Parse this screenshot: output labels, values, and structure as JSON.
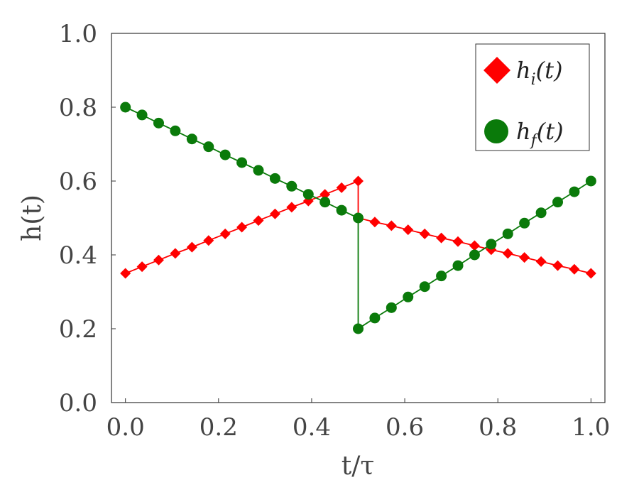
{
  "chart_data": {
    "type": "line",
    "xlabel": "t/τ",
    "ylabel": "h(t)",
    "xlim": [
      -0.03,
      1.03
    ],
    "ylim": [
      0.0,
      1.0
    ],
    "xticks": [
      "0.0",
      "0.2",
      "0.4",
      "0.6",
      "0.8",
      "1.0"
    ],
    "yticks": [
      "0.0",
      "0.2",
      "0.4",
      "0.6",
      "0.8",
      "1.0"
    ],
    "grid": false,
    "legend_position": "top-right",
    "series": [
      {
        "name": "h_i(t)",
        "color": "#ff0000",
        "marker": "diamond",
        "x": [
          0.0,
          0.0357,
          0.0714,
          0.1071,
          0.1429,
          0.1786,
          0.2143,
          0.25,
          0.2857,
          0.3214,
          0.3571,
          0.3929,
          0.4286,
          0.4643,
          0.5,
          0.5,
          0.5357,
          0.5714,
          0.6071,
          0.6429,
          0.6786,
          0.7143,
          0.75,
          0.7857,
          0.8214,
          0.8571,
          0.8929,
          0.9286,
          0.9643,
          1.0
        ],
        "y": [
          0.35,
          0.368,
          0.386,
          0.404,
          0.421,
          0.439,
          0.457,
          0.475,
          0.493,
          0.511,
          0.529,
          0.546,
          0.564,
          0.582,
          0.6,
          0.5,
          0.489,
          0.479,
          0.468,
          0.457,
          0.446,
          0.436,
          0.425,
          0.414,
          0.404,
          0.393,
          0.382,
          0.371,
          0.361,
          0.35
        ],
        "markers": [
          true,
          true,
          true,
          true,
          true,
          true,
          true,
          true,
          true,
          true,
          true,
          true,
          true,
          true,
          true,
          false,
          true,
          true,
          true,
          true,
          true,
          true,
          true,
          true,
          true,
          true,
          true,
          true,
          true,
          true
        ]
      },
      {
        "name": "h_f(t)",
        "color": "#0a7a0a",
        "marker": "circle",
        "x": [
          0.0,
          0.0357,
          0.0714,
          0.1071,
          0.1429,
          0.1786,
          0.2143,
          0.25,
          0.2857,
          0.3214,
          0.3571,
          0.3929,
          0.4286,
          0.4643,
          0.5,
          0.5,
          0.5357,
          0.5714,
          0.6071,
          0.6429,
          0.6786,
          0.7143,
          0.75,
          0.7857,
          0.8214,
          0.8571,
          0.8929,
          0.9286,
          0.9643,
          1.0
        ],
        "y": [
          0.8,
          0.779,
          0.757,
          0.736,
          0.714,
          0.693,
          0.671,
          0.65,
          0.629,
          0.607,
          0.586,
          0.564,
          0.543,
          0.521,
          0.5,
          0.2,
          0.229,
          0.257,
          0.286,
          0.314,
          0.343,
          0.371,
          0.4,
          0.429,
          0.457,
          0.486,
          0.514,
          0.543,
          0.571,
          0.6
        ],
        "markers": [
          true,
          true,
          true,
          true,
          true,
          true,
          true,
          true,
          true,
          true,
          true,
          true,
          true,
          true,
          true,
          true,
          true,
          true,
          true,
          true,
          true,
          true,
          true,
          true,
          true,
          true,
          true,
          true,
          true,
          true
        ]
      }
    ],
    "legend": [
      {
        "base": "h",
        "sub": "i",
        "arg": "(t)"
      },
      {
        "base": "h",
        "sub": "f",
        "arg": "(t)"
      }
    ]
  }
}
